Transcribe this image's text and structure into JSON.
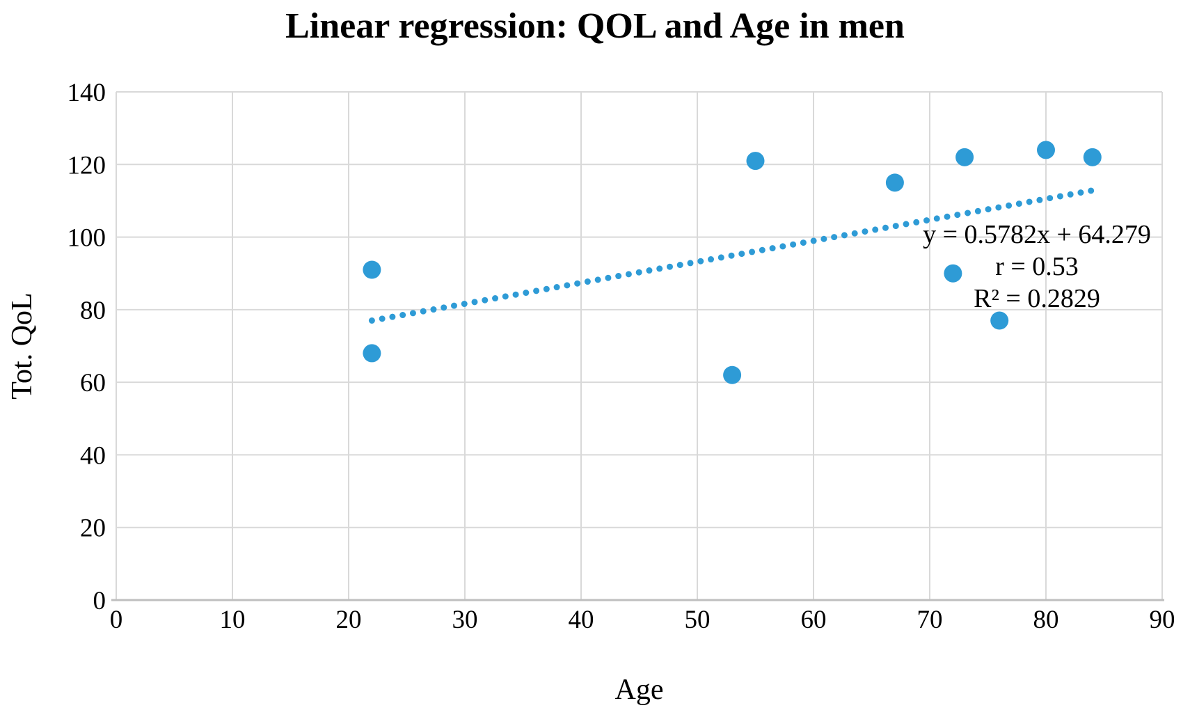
{
  "title": "Linear regression: QOL and Age in men",
  "chart_data": {
    "type": "scatter",
    "title": "Linear regression: QOL and Age in men",
    "xlabel": "Age",
    "ylabel": "Tot. QoL",
    "xlim": [
      0,
      90
    ],
    "ylim": [
      0,
      140
    ],
    "x_ticks": [
      0,
      10,
      20,
      30,
      40,
      50,
      60,
      70,
      80,
      90
    ],
    "y_ticks": [
      0,
      20,
      40,
      60,
      80,
      100,
      120,
      140
    ],
    "grid": true,
    "legend": "none",
    "points": [
      {
        "x": 22,
        "y": 91
      },
      {
        "x": 22,
        "y": 68
      },
      {
        "x": 53,
        "y": 62
      },
      {
        "x": 55,
        "y": 121
      },
      {
        "x": 67,
        "y": 115
      },
      {
        "x": 72,
        "y": 90
      },
      {
        "x": 73,
        "y": 122
      },
      {
        "x": 76,
        "y": 77
      },
      {
        "x": 80,
        "y": 124
      },
      {
        "x": 84,
        "y": 122
      }
    ],
    "trendline": {
      "style": "dotted",
      "slope": 0.5782,
      "intercept": 64.279,
      "x_start": 22,
      "x_end": 84
    },
    "annotation": {
      "lines": [
        "y = 0.5782x + 64.279",
        "r = 0.53",
        "R² = 0.2829"
      ]
    },
    "colors": {
      "point": "#2E9BD6",
      "trendline": "#2E9BD6",
      "gridline": "#D9D9D9",
      "axis_line": "#BFBFBF",
      "text": "#000000"
    }
  }
}
